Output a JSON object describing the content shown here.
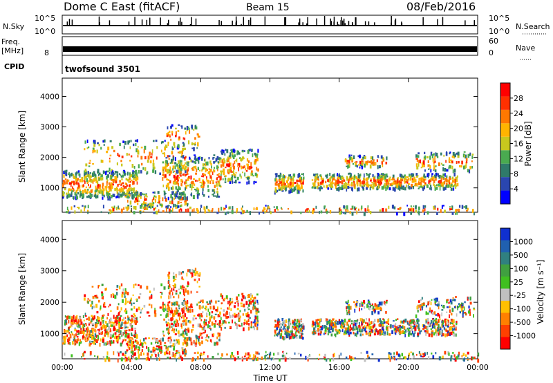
{
  "header": {
    "station": "Dome C East (fitACF)",
    "beam": "Beam 15",
    "date": "08/Feb/2016"
  },
  "top_panels": {
    "nsky_label": "N.Sky",
    "nsky_ticks": [
      "10^5",
      "10^0"
    ],
    "nsearch_label": "N.Search",
    "nsearch_ticks": [
      "10^5",
      "10^0"
    ],
    "freq_label_1": "Freq.",
    "freq_label_2": "[MHz]",
    "freq_tick": "8",
    "nave_label": "Nave",
    "nave_ticks": [
      "60",
      "0"
    ],
    "cpid_label": "CPID",
    "cpid_value": "twofsound 3501"
  },
  "colors": {
    "power": [
      "#0000ff",
      "#2a46b0",
      "#2f7a6a",
      "#4aaa50",
      "#c8c81e",
      "#ffb400",
      "#ff7800",
      "#ff3000",
      "#ff0000"
    ],
    "velocity": [
      "#ff0000",
      "#ff4000",
      "#ff8000",
      "#ffc000",
      "#c0c0c0",
      "#40c020",
      "#40a040",
      "#308080",
      "#2060b0",
      "#1030d0"
    ]
  },
  "chart_data": [
    {
      "type": "heatmap",
      "panel": "power",
      "ylabel": "Slant Range [km]",
      "xlabel": "",
      "ylim": [
        200,
        4600
      ],
      "y_ticks": [
        "1000",
        "2000",
        "3000",
        "4000"
      ],
      "x_ticks": [
        "00:00",
        "04:00",
        "08:00",
        "12:00",
        "16:00",
        "20:00",
        "00:00"
      ],
      "colorbar_label": "Power [dB]",
      "colorbar_ticks": [
        "4",
        "8",
        "12",
        "16",
        "20",
        "24",
        "28"
      ]
    },
    {
      "type": "heatmap",
      "panel": "velocity",
      "ylabel": "Slant Range [km]",
      "xlabel": "Time UT",
      "ylim": [
        200,
        4600
      ],
      "y_ticks": [
        "1000",
        "2000",
        "3000",
        "4000"
      ],
      "x_ticks": [
        "00:00",
        "04:00",
        "08:00",
        "12:00",
        "16:00",
        "20:00",
        "00:00"
      ],
      "colorbar_label": "Velocity [m s⁻¹]",
      "colorbar_ticks": [
        "1000",
        "500",
        "100",
        "25",
        "-25",
        "-100",
        "-500",
        "-1000"
      ]
    }
  ]
}
